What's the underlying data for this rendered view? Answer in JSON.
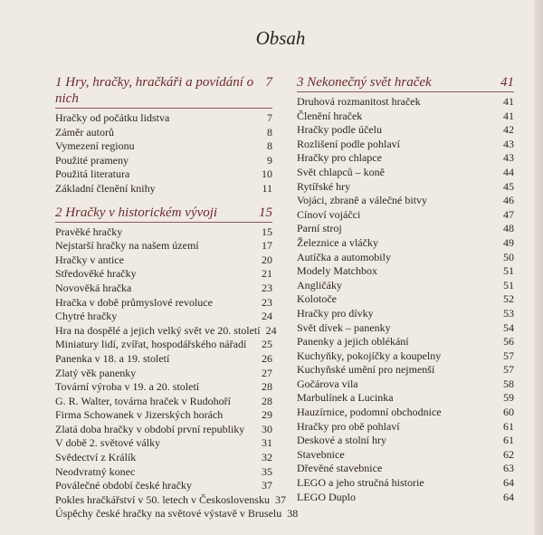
{
  "title": "Obsah",
  "left": {
    "sections": [
      {
        "heading": "1 Hry, hračky, hračkáři a povídání o nich",
        "page": "7",
        "items": [
          {
            "t": "Hračky od počátku lidstva",
            "p": "7"
          },
          {
            "t": "Záměr autorů",
            "p": "8"
          },
          {
            "t": "Vymezení regionu",
            "p": "8"
          },
          {
            "t": "Použité prameny",
            "p": "9"
          },
          {
            "t": "Použitá literatura",
            "p": "10"
          },
          {
            "t": "Základní členění knihy",
            "p": "11"
          }
        ]
      },
      {
        "heading": "2 Hračky v historickém vývoji",
        "page": "15",
        "items": [
          {
            "t": "Pravěké hračky",
            "p": "15"
          },
          {
            "t": "Nejstarší hračky na našem území",
            "p": "17"
          },
          {
            "t": "Hračky v antice",
            "p": "20"
          },
          {
            "t": "Středověké hračky",
            "p": "21"
          },
          {
            "t": "Novověká hračka",
            "p": "23"
          },
          {
            "t": "Hračka v době průmyslové revoluce",
            "p": "23"
          },
          {
            "t": "Chytré hračky",
            "p": "24"
          },
          {
            "t": "Hra na dospělé a jejich velký svět ve 20. století",
            "p": "24"
          },
          {
            "t": "Miniatury lidí, zvířat, hospodářského nářadí",
            "p": "25"
          },
          {
            "t": "Panenka v 18. a 19. století",
            "p": "26"
          },
          {
            "t": "Zlatý věk panenky",
            "p": "27"
          },
          {
            "t": "Tovární výroba v 19. a 20. století",
            "p": "28"
          },
          {
            "t": "G. R. Walter, továrna hraček v Rudohoří",
            "p": "28"
          },
          {
            "t": "Firma Schowanek v Jizerských horách",
            "p": "29"
          },
          {
            "t": "Zlatá doba hračky v období první republiky",
            "p": "30"
          },
          {
            "t": "V době 2. světové války",
            "p": "31"
          },
          {
            "t": "Svědectví z Králík",
            "p": "32"
          },
          {
            "t": "Neodvratný konec",
            "p": "35"
          },
          {
            "t": "Poválečné období české hračky",
            "p": "37"
          },
          {
            "t": "Pokles hračkářství v 50. letech v Československu",
            "p": "37"
          },
          {
            "t": "Úspěchy české hračky na světové výstavě v Bruselu",
            "p": "38"
          }
        ]
      }
    ]
  },
  "right": {
    "sections": [
      {
        "heading": "3 Nekonečný svět hraček",
        "page": "41",
        "items": [
          {
            "t": "Druhová rozmanitost hraček",
            "p": "41"
          },
          {
            "t": "Členění hraček",
            "p": "41"
          },
          {
            "t": "Hračky podle účelu",
            "p": "42"
          },
          {
            "t": "Rozlišení podle pohlaví",
            "p": "43"
          },
          {
            "t": "Hračky pro chlapce",
            "p": "43"
          },
          {
            "t": "Svět chlapců – koně",
            "p": "44"
          },
          {
            "t": "Rytířské hry",
            "p": "45"
          },
          {
            "t": "Vojáci, zbraně a válečné bitvy",
            "p": "46"
          },
          {
            "t": "Cínoví vojáčci",
            "p": "47"
          },
          {
            "t": "Parní stroj",
            "p": "48"
          },
          {
            "t": "Železnice a vláčky",
            "p": "49"
          },
          {
            "t": "Autíčka a automobily",
            "p": "50"
          },
          {
            "t": "Modely Matchbox",
            "p": "51"
          },
          {
            "t": "Angličáky",
            "p": "51"
          },
          {
            "t": "Kolotoče",
            "p": "52"
          },
          {
            "t": "Hračky pro dívky",
            "p": "53"
          },
          {
            "t": "Svět dívek – panenky",
            "p": "54"
          },
          {
            "t": "Panenky a jejich oblékání",
            "p": "56"
          },
          {
            "t": "Kuchyňky, pokojíčky a koupelny",
            "p": "57"
          },
          {
            "t": "Kuchyňské umění pro nejmenší",
            "p": "57"
          },
          {
            "t": "Gočárova vila",
            "p": "58"
          },
          {
            "t": "Marbulínek a Lucinka",
            "p": "59"
          },
          {
            "t": "Hauzírnice, podomní obchodnice",
            "p": "60"
          },
          {
            "t": "Hračky pro obě pohlaví",
            "p": "61"
          },
          {
            "t": "Deskové a stolní hry",
            "p": "61"
          },
          {
            "t": "Stavebnice",
            "p": "62"
          },
          {
            "t": "Dřevěné stavebnice",
            "p": "63"
          },
          {
            "t": "LEGO a jeho stručná historie",
            "p": "64"
          },
          {
            "t": "LEGO Duplo",
            "p": "64"
          }
        ]
      }
    ]
  },
  "colors": {
    "background": "#f0eae4",
    "heading": "#6b2a2c",
    "text": "#2b2420"
  }
}
